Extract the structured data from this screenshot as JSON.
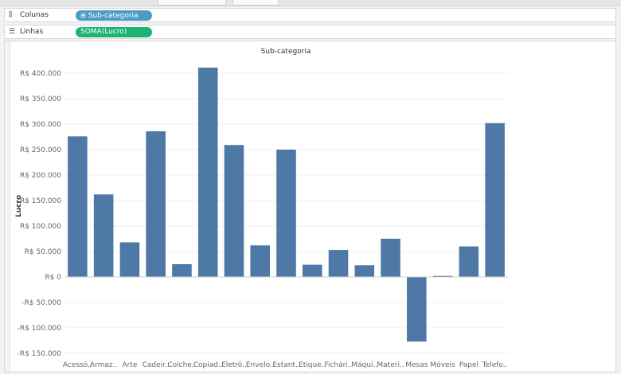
{
  "shelves": {
    "columns": {
      "label": "Colunas",
      "icon": "columns-icon",
      "pill": "Sub-categoria",
      "pill_icon": "plus-box-icon",
      "pill_color": "#4b9cc3"
    },
    "rows": {
      "label": "Linhas",
      "icon": "rows-icon",
      "pill": "SOMA(Lucro)",
      "pill_color": "#1cb373"
    }
  },
  "colors": {
    "bar": "#4e79a7"
  },
  "chart_data": {
    "type": "bar",
    "title": "Sub-categoria",
    "xlabel": "",
    "ylabel": "Lucro",
    "categories": [
      "Acessó..",
      "Armaz..",
      "Arte",
      "Cadeir..",
      "Colche..",
      "Copiad..",
      "Eletrô..",
      "Envelo..",
      "Estant..",
      "Etique..",
      "Fichári..",
      "Máqui..",
      "Materi..",
      "Mesas",
      "Móveis",
      "Papel",
      "Telefo.."
    ],
    "values": [
      276000,
      162000,
      68000,
      286000,
      25000,
      411000,
      259000,
      62000,
      250000,
      24000,
      53000,
      23000,
      75000,
      -127000,
      2000,
      60000,
      302000
    ],
    "ylim": [
      -150000,
      400000
    ],
    "yticks": [
      400000,
      350000,
      300000,
      250000,
      200000,
      150000,
      100000,
      50000,
      0,
      -50000,
      -100000,
      -150000
    ],
    "ytick_labels": [
      "R$ 400.000",
      "R$ 350.000",
      "R$ 300.000",
      "R$ 250.000",
      "R$ 200.000",
      "R$ 150.000",
      "R$ 100.000",
      "R$ 50.000",
      "R$ 0",
      "-R$ 50.000",
      "-R$ 100.000",
      "-R$ 150.000"
    ],
    "grid": true
  }
}
